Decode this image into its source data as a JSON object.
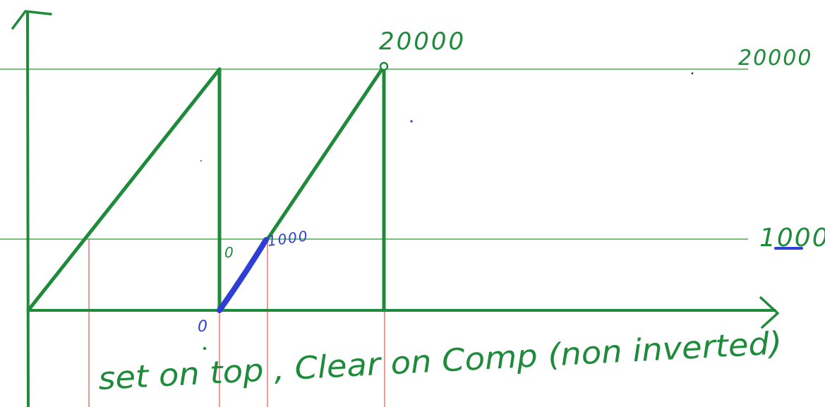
{
  "title": "",
  "colors": {
    "waveform": "#1e8b3a",
    "guide_line": "#4caf50",
    "marker": "#e35656",
    "highlight": "#2f3fd6",
    "text": "#1e8b3a"
  },
  "levels": {
    "top": {
      "left_label": "",
      "right_label": "20000",
      "peak_label": "20000"
    },
    "compare": {
      "right_label": "1000",
      "point_label": "1000"
    }
  },
  "zero_labels": {
    "axis_origin": "0",
    "vertical_mark": "0"
  },
  "caption": "set on top , Clear on Comp (non inverted)"
}
